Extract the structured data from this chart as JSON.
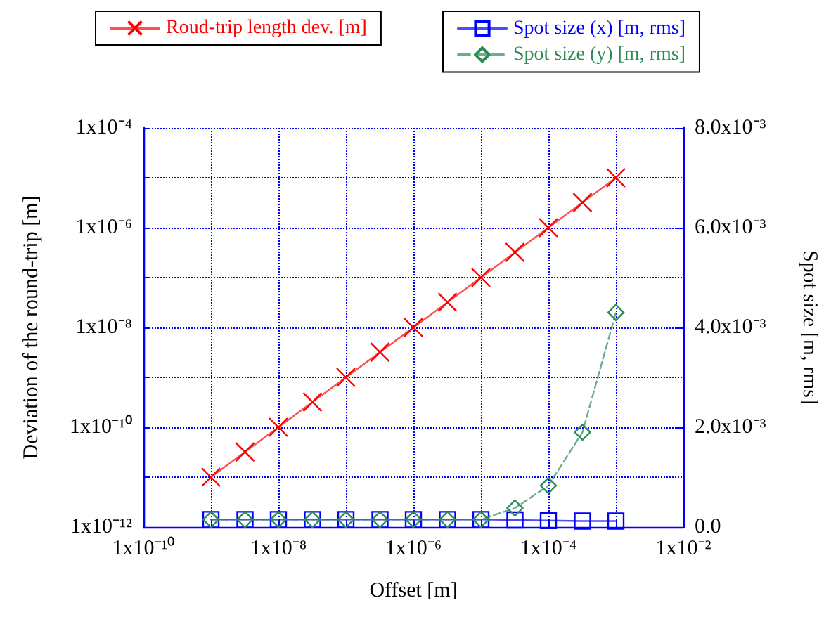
{
  "chart_data": {
    "type": "line",
    "xlabel": "Offset [m]",
    "ylabel": "Deviation of the round-trip [m]",
    "y2label": "Spot size [m, rms]",
    "log": "xy",
    "x": [
      1e-09,
      3.2e-09,
      1e-08,
      3.2e-08,
      1e-07,
      3.2e-07,
      1e-06,
      3.2e-06,
      1e-05,
      3.2e-05,
      0.0001,
      0.00032,
      0.001
    ],
    "series": [
      {
        "name": "Roud-trip length dev. [m]",
        "color": "#ff0000",
        "marker": "cross",
        "line_style": "solid",
        "values": [
          1e-11,
          3.2e-11,
          1e-10,
          3.2e-10,
          1e-09,
          3.2e-09,
          1e-08,
          3.2e-08,
          1e-07,
          3.2e-07,
          1e-06,
          3.2e-06,
          1e-05
        ]
      },
      {
        "name": "Spot size (x) [m, rms]",
        "color": "#0000ff",
        "marker": "square",
        "line_style": "solid",
        "axis": "y2",
        "values": [
          0.00015,
          0.00015,
          0.00015,
          0.00015,
          0.00015,
          0.00015,
          0.00015,
          0.00015,
          0.00015,
          0.00014,
          0.00013,
          0.00012,
          0.00012
        ]
      },
      {
        "name": "Spot size (y) [m, rms]",
        "color": "#2e8b57",
        "marker": "diamond",
        "line_style": "dashed",
        "axis": "y2",
        "values": [
          0.00015,
          0.00015,
          0.00015,
          0.00015,
          0.00015,
          0.00015,
          0.00015,
          0.00015,
          0.00015,
          0.00038,
          0.00083,
          0.0019,
          0.0043
        ]
      }
    ],
    "xlim": [
      1e-10,
      0.01
    ],
    "xticks": [
      {
        "value": 1e-10,
        "label": "1x10⁻¹⁰"
      },
      {
        "value": 1e-09,
        "label": null
      },
      {
        "value": 1e-08,
        "label": "1x10⁻⁸"
      },
      {
        "value": 1e-07,
        "label": null
      },
      {
        "value": 1e-06,
        "label": "1x10⁻⁶"
      },
      {
        "value": 1e-05,
        "label": null
      },
      {
        "value": 0.0001,
        "label": "1x10⁻⁴"
      },
      {
        "value": 0.001,
        "label": null
      },
      {
        "value": 0.01,
        "label": "1x10⁻²"
      }
    ],
    "ylim": [
      1e-12,
      0.0001
    ],
    "yticks": [
      {
        "value": 1e-12,
        "label": "1x10⁻¹²"
      },
      {
        "value": 1e-11,
        "label": null
      },
      {
        "value": 1e-10,
        "label": "1x10⁻¹⁰"
      },
      {
        "value": 1e-09,
        "label": null
      },
      {
        "value": 1e-08,
        "label": "1x10⁻⁸"
      },
      {
        "value": 1e-07,
        "label": null
      },
      {
        "value": 1e-06,
        "label": "1x10⁻⁶"
      },
      {
        "value": 1e-05,
        "label": null
      },
      {
        "value": 0.0001,
        "label": "1x10⁻⁴"
      }
    ],
    "y2lim": [
      0,
      0.008
    ],
    "y2ticks": [
      {
        "value": 0,
        "label": "0.0"
      },
      {
        "value": 0.002,
        "label": "2.0x10⁻³"
      },
      {
        "value": 0.004,
        "label": "4.0x10⁻³"
      },
      {
        "value": 0.006,
        "label": "6.0x10⁻³"
      },
      {
        "value": 0.008,
        "label": "8.0x10⁻³"
      }
    ],
    "grid": true,
    "legend": "top"
  }
}
